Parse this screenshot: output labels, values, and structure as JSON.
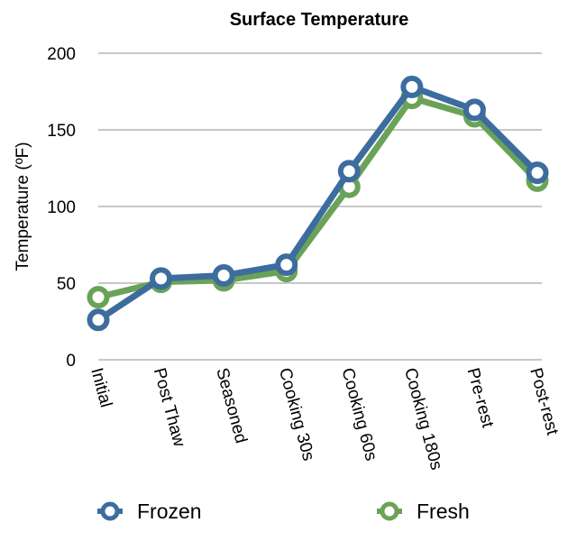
{
  "chart_data": {
    "type": "line",
    "title": "Surface Temperature",
    "xlabel": "",
    "ylabel": "Temperature (ºF)",
    "ylim": [
      0,
      200
    ],
    "yticks": [
      "0",
      "50",
      "100",
      "150",
      "200"
    ],
    "grid": true,
    "legend_position": "bottom",
    "categories": [
      "Initial",
      "Post Thaw",
      "Seasoned",
      "Cooking 30s",
      "Cooking 60s",
      "Cooking 180s",
      "Pre-rest",
      "Post-rest"
    ],
    "series": [
      {
        "name": "Fresh",
        "color": "#6aa357",
        "values": [
          42,
          52,
          53,
          59,
          114,
          172,
          160,
          118
        ]
      },
      {
        "name": "Frozen",
        "color": "#3d6c9e",
        "values": [
          26,
          53,
          55,
          62,
          123,
          178,
          163,
          122
        ]
      }
    ]
  }
}
